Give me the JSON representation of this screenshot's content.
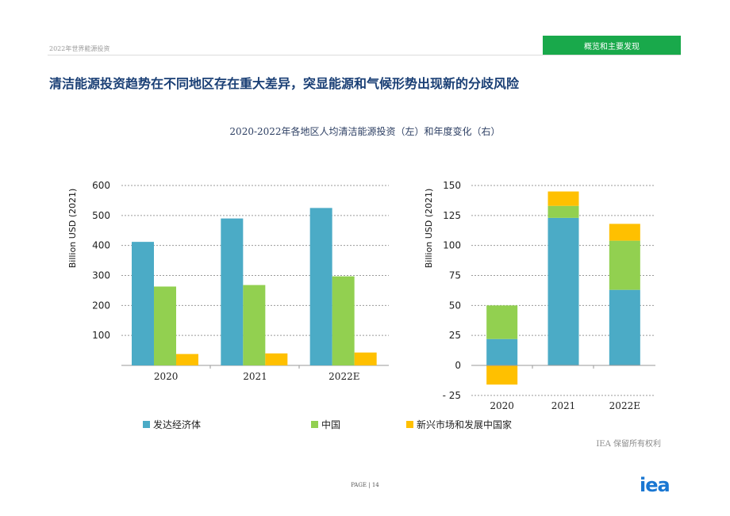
{
  "header": {
    "report_name": "2022年世界能源投资",
    "section_badge": "概览和主要发现"
  },
  "page_title": "清洁能源投资趋势在不同地区存在重大差异，突显能源和气候形势出现新的分歧风险",
  "chart_title": "2020-2022年各地区人均清洁能源投资（左）和年度变化（右）",
  "legend": [
    {
      "label": "发达经济体",
      "color": "#4babc6"
    },
    {
      "label": "中国",
      "color": "#92d050"
    },
    {
      "label": "新兴市场和发展中国家",
      "color": "#ffc000"
    }
  ],
  "chart_data": [
    {
      "type": "bar",
      "title": "",
      "xlabel": "",
      "ylabel": "Billion USD (2021)",
      "categories": [
        "2020",
        "2021",
        "2022E"
      ],
      "ylim": [
        0,
        600
      ],
      "yticks": [
        100,
        200,
        300,
        400,
        500,
        600
      ],
      "grid": true,
      "series": [
        {
          "name": "发达经济体",
          "values": [
            412,
            490,
            525
          ]
        },
        {
          "name": "中国",
          "values": [
            263,
            268,
            297
          ]
        },
        {
          "name": "新兴市场和发展中国家",
          "values": [
            38,
            40,
            43
          ]
        }
      ]
    },
    {
      "type": "bar",
      "stacked": true,
      "title": "",
      "xlabel": "",
      "ylabel": "Billion USD (2021)",
      "categories": [
        "2020",
        "2021",
        "2022E"
      ],
      "ylim": [
        -25,
        150
      ],
      "yticks": [
        -25,
        0,
        25,
        50,
        75,
        100,
        125,
        150
      ],
      "ytick_labels": [
        "- 25",
        "0",
        "25",
        "50",
        "75",
        "100",
        "125",
        "150"
      ],
      "grid": true,
      "series": [
        {
          "name": "发达经济体",
          "values": [
            22,
            123,
            63
          ]
        },
        {
          "name": "中国",
          "values": [
            28,
            10,
            41
          ]
        },
        {
          "name": "新兴市场和发展中国家",
          "values": [
            -16,
            12,
            14
          ]
        }
      ]
    }
  ],
  "footer": {
    "copyright": "IEA 保留所有权利",
    "page_label": "PAGE | 14",
    "logo": "iea"
  }
}
